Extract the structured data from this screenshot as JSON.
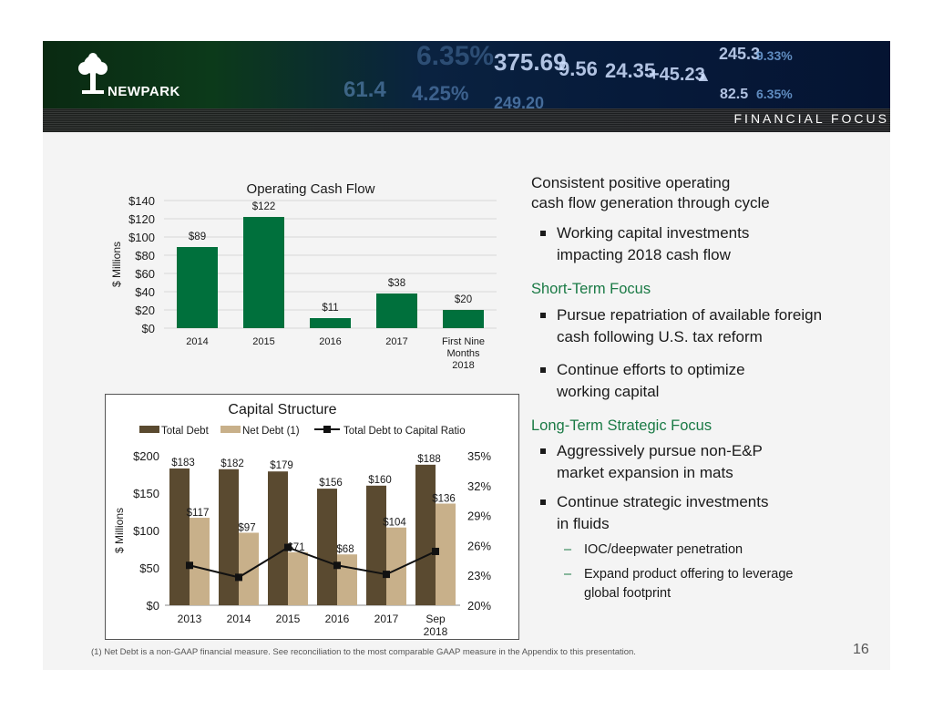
{
  "header": {
    "section_title": "FINANCIAL FOCUS",
    "logo_text": "NEWPARK",
    "tickers": [
      "6.35%",
      "375.69",
      "9.56",
      "24.35",
      "+45.23",
      "▲",
      "245.3",
      "9.33%",
      "61.4",
      "4.25%",
      "249.20",
      "82.5",
      "6.35%"
    ]
  },
  "colors": {
    "green_bar": "#00703c",
    "total_debt": "#5a4a30",
    "net_debt": "#c8b08a",
    "line": "#111111",
    "accent_green": "#1a7a45"
  },
  "chart_data": [
    {
      "type": "bar",
      "title": "Operating Cash Flow",
      "ylabel": "$ Millions",
      "categories": [
        "2014",
        "2015",
        "2016",
        "2017",
        "First Nine Months 2018"
      ],
      "category_lines": [
        [
          "2014"
        ],
        [
          "2015"
        ],
        [
          "2016"
        ],
        [
          "2017"
        ],
        [
          "First Nine",
          "Months",
          "2018"
        ]
      ],
      "values": [
        89,
        122,
        11,
        38,
        20
      ],
      "data_labels": [
        "$89",
        "$122",
        "$11",
        "$38",
        "$20"
      ],
      "yticks": [
        "$0",
        "$20",
        "$40",
        "$60",
        "$80",
        "$100",
        "$120",
        "$140"
      ],
      "ylim": [
        0,
        140
      ]
    },
    {
      "type": "bar",
      "title": "Capital Structure",
      "ylabel": "$ Millions",
      "categories": [
        "2013",
        "2014",
        "2015",
        "2016",
        "2017",
        "Sep 2018"
      ],
      "category_lines": [
        [
          "2013"
        ],
        [
          "2014"
        ],
        [
          "2015"
        ],
        [
          "2016"
        ],
        [
          "2017"
        ],
        [
          "Sep",
          "2018"
        ]
      ],
      "series": [
        {
          "name": "Total Debt",
          "values": [
            183,
            182,
            179,
            156,
            160,
            188
          ],
          "labels": [
            "$183",
            "$182",
            "$179",
            "$156",
            "$160",
            "$188"
          ]
        },
        {
          "name": "Net Debt (1)",
          "values": [
            117,
            97,
            71,
            68,
            104,
            136
          ],
          "labels": [
            "$117",
            "$97",
            "$71",
            "$68",
            "$104",
            "$136"
          ]
        },
        {
          "name": "Total Debt to Capital Ratio",
          "type": "line",
          "axis": "right",
          "values": [
            24,
            22.8,
            25.8,
            24,
            23.1,
            25.4
          ]
        }
      ],
      "yticks_left": [
        "$0",
        "$50",
        "$100",
        "$150",
        "$200"
      ],
      "ylim_left": [
        0,
        200
      ],
      "yticks_right": [
        "20%",
        "23%",
        "26%",
        "29%",
        "32%",
        "35%"
      ],
      "ylim_right": [
        20,
        35
      ]
    }
  ],
  "right": {
    "heading_line1": "Consistent positive operating",
    "heading_line2": "cash flow generation through cycle",
    "b1_line1": "Working capital investments",
    "b1_line2": "impacting 2018 cash flow",
    "short_term": "Short-Term Focus",
    "b2_line1": "Pursue repatriation of available foreign",
    "b2_line2": "cash following U.S. tax reform",
    "b3_line1": "Continue efforts to optimize",
    "b3_line2": "working capital",
    "long_term": "Long-Term Strategic Focus",
    "b4_line1": "Aggressively pursue non-E&P",
    "b4_line2": "market expansion in mats",
    "b5_line1": "Continue strategic investments",
    "b5_line2": "in fluids",
    "d1": "IOC/deepwater penetration",
    "d2_line1": "Expand product offering to leverage",
    "d2_line2": "global footprint"
  },
  "footnote": "(1) Net Debt is a non-GAAP financial measure.  See reconciliation to the most comparable GAAP measure in the Appendix to this presentation.",
  "page_number": "16"
}
